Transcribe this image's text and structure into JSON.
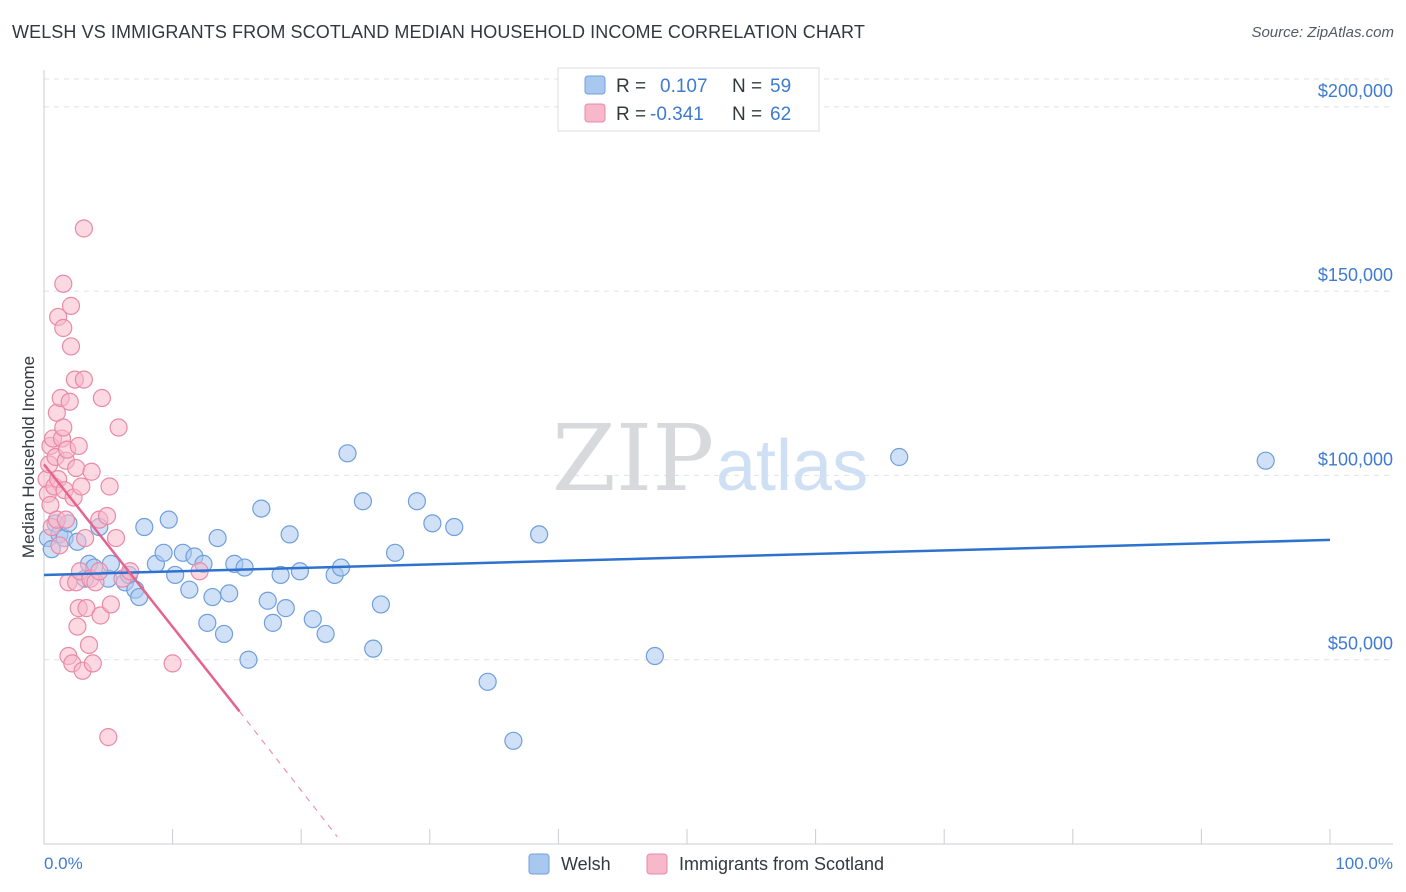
{
  "header": {
    "title": "WELSH VS IMMIGRANTS FROM SCOTLAND MEDIAN HOUSEHOLD INCOME CORRELATION CHART",
    "source": "Source: ZipAtlas.com"
  },
  "watermark": {
    "part1": "ZIP",
    "part2": "atlas"
  },
  "colors": {
    "welsh_fill": "#a9c8f0",
    "welsh_stroke": "#6f9fdc",
    "welsh_line": "#2e72cf",
    "scot_fill": "#f7b8cb",
    "scot_stroke": "#e98aa8",
    "scot_line": "#e4648f",
    "axis_text": "#3f7bd0",
    "grid": "#dde1e6"
  },
  "legend_stats": [
    {
      "r_label": "R =",
      "r_value": "0.107",
      "n_label": "N =",
      "n_value": "59",
      "series": "welsh"
    },
    {
      "r_label": "R =",
      "r_value": "-0.341",
      "n_label": "N =",
      "n_value": "62",
      "series": "scot"
    }
  ],
  "chart_data": {
    "type": "scatter",
    "title": "WELSH VS IMMIGRANTS FROM SCOTLAND MEDIAN HOUSEHOLD INCOME CORRELATION CHART",
    "xlabel": "",
    "ylabel": "Median Household Income",
    "xlim": [
      0,
      100
    ],
    "ylim": [
      0,
      210000
    ],
    "x_tick_labels": [
      "0.0%",
      "100.0%"
    ],
    "y_ticks": [
      50000,
      100000,
      150000,
      200000
    ],
    "y_tick_labels": [
      "$50,000",
      "$100,000",
      "$150,000",
      "$200,000"
    ],
    "grid": true,
    "legend_position": "bottom",
    "series": [
      {
        "name": "Welsh",
        "key": "welsh",
        "r": 0.107,
        "n": 59,
        "trend": {
          "x0": 0,
          "y0": 73000,
          "x1": 100,
          "y1": 82500
        },
        "points": [
          [
            0.3,
            83000
          ],
          [
            0.6,
            80000
          ],
          [
            0.9,
            87000
          ],
          [
            1.2,
            84000
          ],
          [
            1.6,
            83000
          ],
          [
            1.9,
            87000
          ],
          [
            2.6,
            82000
          ],
          [
            3.2,
            72000
          ],
          [
            3.5,
            76000
          ],
          [
            3.9,
            75000
          ],
          [
            4.3,
            86000
          ],
          [
            5.0,
            72000
          ],
          [
            5.2,
            76000
          ],
          [
            6.3,
            71000
          ],
          [
            6.6,
            73000
          ],
          [
            7.1,
            69000
          ],
          [
            7.4,
            67000
          ],
          [
            7.8,
            86000
          ],
          [
            8.7,
            76000
          ],
          [
            9.3,
            79000
          ],
          [
            9.7,
            88000
          ],
          [
            10.2,
            73000
          ],
          [
            10.8,
            79000
          ],
          [
            11.3,
            69000
          ],
          [
            11.7,
            78000
          ],
          [
            12.4,
            76000
          ],
          [
            12.7,
            60000
          ],
          [
            13.1,
            67000
          ],
          [
            13.5,
            83000
          ],
          [
            14.0,
            57000
          ],
          [
            14.4,
            68000
          ],
          [
            14.8,
            76000
          ],
          [
            15.6,
            75000
          ],
          [
            15.9,
            50000
          ],
          [
            16.9,
            91000
          ],
          [
            17.4,
            66000
          ],
          [
            17.8,
            60000
          ],
          [
            18.4,
            73000
          ],
          [
            18.8,
            64000
          ],
          [
            19.1,
            84000
          ],
          [
            19.9,
            74000
          ],
          [
            20.9,
            61000
          ],
          [
            21.9,
            57000
          ],
          [
            22.6,
            73000
          ],
          [
            23.1,
            75000
          ],
          [
            23.6,
            106000
          ],
          [
            24.8,
            93000
          ],
          [
            25.6,
            53000
          ],
          [
            26.2,
            65000
          ],
          [
            27.3,
            79000
          ],
          [
            29.0,
            93000
          ],
          [
            30.2,
            87000
          ],
          [
            31.9,
            86000
          ],
          [
            34.5,
            44000
          ],
          [
            36.5,
            28000
          ],
          [
            38.5,
            84000
          ],
          [
            47.5,
            51000
          ],
          [
            66.5,
            105000
          ],
          [
            95.0,
            104000
          ]
        ]
      },
      {
        "name": "Immigrants from Scotland",
        "key": "scot",
        "r": -0.341,
        "n": 62,
        "trend": {
          "x0": 0,
          "y0": 103000,
          "x1": 15.2,
          "y1": 36000
        },
        "trend_dashed": {
          "x0": 15.2,
          "y0": 36000,
          "x1": 22.8,
          "y1": 2000
        },
        "points": [
          [
            0.2,
            99000
          ],
          [
            0.3,
            95000
          ],
          [
            0.4,
            103000
          ],
          [
            0.5,
            92000
          ],
          [
            0.5,
            108000
          ],
          [
            0.6,
            86000
          ],
          [
            0.7,
            110000
          ],
          [
            0.8,
            97000
          ],
          [
            0.9,
            105000
          ],
          [
            1.0,
            88000
          ],
          [
            1.0,
            117000
          ],
          [
            1.1,
            99000
          ],
          [
            1.1,
            143000
          ],
          [
            1.2,
            81000
          ],
          [
            1.3,
            121000
          ],
          [
            1.4,
            110000
          ],
          [
            1.5,
            152000
          ],
          [
            1.5,
            140000
          ],
          [
            1.5,
            113000
          ],
          [
            1.6,
            96000
          ],
          [
            1.7,
            104000
          ],
          [
            1.7,
            88000
          ],
          [
            1.8,
            107000
          ],
          [
            1.9,
            51000
          ],
          [
            1.9,
            71000
          ],
          [
            2.0,
            120000
          ],
          [
            2.1,
            146000
          ],
          [
            2.1,
            135000
          ],
          [
            2.2,
            49000
          ],
          [
            2.3,
            94000
          ],
          [
            2.4,
            126000
          ],
          [
            2.5,
            102000
          ],
          [
            2.5,
            71000
          ],
          [
            2.6,
            59000
          ],
          [
            2.7,
            108000
          ],
          [
            2.7,
            64000
          ],
          [
            2.8,
            74000
          ],
          [
            2.9,
            97000
          ],
          [
            3.0,
            47000
          ],
          [
            3.1,
            167000
          ],
          [
            3.1,
            126000
          ],
          [
            3.2,
            83000
          ],
          [
            3.3,
            64000
          ],
          [
            3.5,
            54000
          ],
          [
            3.6,
            72000
          ],
          [
            3.7,
            101000
          ],
          [
            3.8,
            49000
          ],
          [
            4.0,
            71000
          ],
          [
            4.3,
            88000
          ],
          [
            4.3,
            74000
          ],
          [
            4.4,
            62000
          ],
          [
            4.5,
            121000
          ],
          [
            4.9,
            89000
          ],
          [
            5.1,
            97000
          ],
          [
            5.0,
            29000
          ],
          [
            5.2,
            65000
          ],
          [
            5.6,
            83000
          ],
          [
            5.8,
            113000
          ],
          [
            6.1,
            72000
          ],
          [
            6.7,
            74000
          ],
          [
            10.0,
            49000
          ],
          [
            12.1,
            74000
          ]
        ]
      }
    ]
  }
}
